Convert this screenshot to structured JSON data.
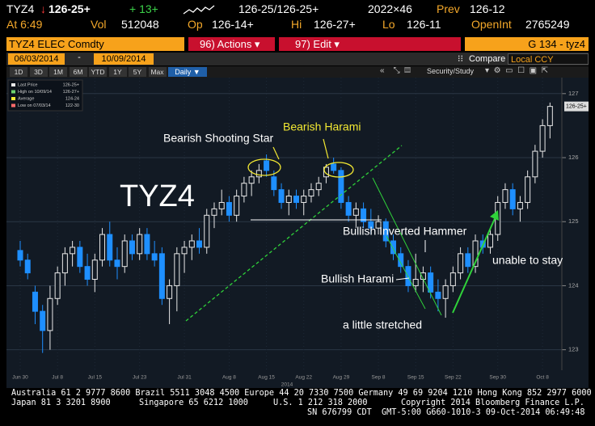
{
  "header": {
    "ticker": "TYZ4",
    "arrow": "↓",
    "last": "126-25+",
    "change": "+ 13+",
    "bid_ask": "126-25/126-25+",
    "size": "2022×46",
    "prev_label": "Prev",
    "prev": "126-12",
    "time": "At 6:49",
    "vol_label": "Vol",
    "vol": "512048",
    "op_label": "Op",
    "op": "126-14+",
    "hi_label": "Hi",
    "hi": "126-27+",
    "lo_label": "Lo",
    "lo": "126-11",
    "oi_label": "OpenInt",
    "oi": "2765249"
  },
  "toolbar": {
    "security": "TYZ4 ELEC Comdty",
    "actions": "96) Actions ▾",
    "edit": "97) Edit ▾",
    "page": "G 134 - tyz4",
    "start_date": "06/03/2014",
    "end_date": "10/09/2014",
    "compare": "Compare",
    "currency": "Local CCY",
    "ranges": [
      "1D",
      "3D",
      "1M",
      "6M",
      "YTD",
      "1Y",
      "5Y",
      "Max"
    ],
    "period": "Daily ▼",
    "study": "Security/Study"
  },
  "chart_data": {
    "type": "candlestick",
    "categories": [
      "Jun 30",
      null,
      null,
      null,
      null,
      "Jul 8",
      null,
      null,
      null,
      null,
      "Jul 15",
      null,
      null,
      null,
      null,
      null,
      "Jul 23",
      null,
      null,
      null,
      null,
      null,
      "Jul 31",
      null,
      null,
      null,
      null,
      null,
      "Aug 8",
      null,
      null,
      null,
      null,
      "Aug 15",
      null,
      null,
      null,
      null,
      "Aug 22",
      null,
      null,
      null,
      null,
      "Aug 29",
      null,
      null,
      null,
      null,
      "Sep 8",
      null,
      null,
      null,
      null,
      "Sep 15",
      null,
      null,
      null,
      null,
      "Sep 22",
      null,
      null,
      null,
      null,
      null,
      "Sep 30",
      null,
      null,
      null,
      null,
      null,
      "Oct 8",
      null
    ],
    "open": [
      124.55,
      124.4,
      123.9,
      123.6,
      123.3,
      123.8,
      124.2,
      124.5,
      124.6,
      124.3,
      124.1,
      124.4,
      124.8,
      124.4,
      124.3,
      124.7,
      124.5,
      124.8,
      124.5,
      124.5,
      123.8,
      124.0,
      124.5,
      124.6,
      124.7,
      124.6,
      125.1,
      125.2,
      125.3,
      125.1,
      125.4,
      125.6,
      125.7,
      125.95,
      125.7,
      125.5,
      125.3,
      125.4,
      125.3,
      125.4,
      125.5,
      125.7,
      125.9,
      125.8,
      125.3,
      125.1,
      125.2,
      125.0,
      124.9,
      125.0,
      124.7,
      124.5,
      124.3,
      124.0,
      124.1,
      124.2,
      123.9,
      123.8,
      124.0,
      124.2,
      124.5,
      124.3,
      124.7,
      124.6,
      124.8,
      125.3,
      125.5,
      125.2,
      125.3,
      125.7,
      126.1,
      126.5
    ],
    "high": [
      124.7,
      124.5,
      124.0,
      123.7,
      124.0,
      124.3,
      124.6,
      124.7,
      124.7,
      124.5,
      124.5,
      124.9,
      125.0,
      124.6,
      124.8,
      124.8,
      124.9,
      124.9,
      124.7,
      124.6,
      124.1,
      124.6,
      124.7,
      124.8,
      124.9,
      125.2,
      125.3,
      125.5,
      125.4,
      125.5,
      125.7,
      125.8,
      125.9,
      126.05,
      125.8,
      125.6,
      125.5,
      125.5,
      125.5,
      125.6,
      125.7,
      125.9,
      126.0,
      125.85,
      125.4,
      125.3,
      125.3,
      125.2,
      125.1,
      125.05,
      124.8,
      124.6,
      124.4,
      124.5,
      124.3,
      124.3,
      124.1,
      124.1,
      124.3,
      124.6,
      124.6,
      124.8,
      124.8,
      124.9,
      125.4,
      125.6,
      125.6,
      125.4,
      125.8,
      126.2,
      126.6,
      126.86
    ],
    "low": [
      124.3,
      124.1,
      123.4,
      122.95,
      123.0,
      123.7,
      124.0,
      124.3,
      124.2,
      124.0,
      123.9,
      124.3,
      124.3,
      124.1,
      124.2,
      124.4,
      124.4,
      124.4,
      124.3,
      123.7,
      123.4,
      123.6,
      124.2,
      124.4,
      124.5,
      124.5,
      124.9,
      125.1,
      125.0,
      125.0,
      125.3,
      125.4,
      125.6,
      125.7,
      125.4,
      125.2,
      125.1,
      125.2,
      125.1,
      125.3,
      125.4,
      125.6,
      125.75,
      125.2,
      125.0,
      124.9,
      124.9,
      124.8,
      124.8,
      124.6,
      124.4,
      124.2,
      123.9,
      123.9,
      123.9,
      123.8,
      123.6,
      123.5,
      123.9,
      124.1,
      124.2,
      124.2,
      124.5,
      124.5,
      124.7,
      125.2,
      125.1,
      125.0,
      125.2,
      125.6,
      126.0,
      126.3
    ],
    "close": [
      124.4,
      124.2,
      123.6,
      123.3,
      123.8,
      124.2,
      124.5,
      124.6,
      124.3,
      124.1,
      124.4,
      124.8,
      124.4,
      124.3,
      124.7,
      124.5,
      124.8,
      124.5,
      124.4,
      123.8,
      124.0,
      124.5,
      124.6,
      124.7,
      124.6,
      125.1,
      125.2,
      125.3,
      125.1,
      125.4,
      125.6,
      125.7,
      125.8,
      125.8,
      125.5,
      125.3,
      125.4,
      125.3,
      125.4,
      125.5,
      125.6,
      125.85,
      125.8,
      125.3,
      125.1,
      125.2,
      125.0,
      124.9,
      125.0,
      124.7,
      124.5,
      124.3,
      124.0,
      124.1,
      124.2,
      123.9,
      123.8,
      124.0,
      124.2,
      124.5,
      124.3,
      124.7,
      124.6,
      124.8,
      125.3,
      125.5,
      125.2,
      125.3,
      125.7,
      126.1,
      126.5,
      126.8
    ],
    "up_color": "#e8e8e8",
    "down_color": "#1e8fff",
    "ylim": [
      122.68,
      127.25
    ],
    "yticks": [
      123,
      124,
      125,
      126,
      127
    ],
    "year": "2014",
    "last_label": "126-25+",
    "stats": [
      {
        "label": "Last Price",
        "value": "126-25+"
      },
      {
        "label": "High on 10/09/14",
        "value": "126-27+"
      },
      {
        "label": "Average",
        "value": "124-24"
      },
      {
        "label": "Low on 07/03/14",
        "value": "122-30"
      }
    ],
    "annotations": [
      "TYZ4",
      "Bearish Shooting Star",
      "Bearish Harami",
      "Bullish Inverted Hammer",
      "Bullish Harami",
      "unable to stay",
      "a little stretched"
    ]
  },
  "footer": {
    "line1": "Australia 61 2 9777 8600 Brazil 5511 3048 4500 Europe 44 20 7330 7500 Germany 49 69 9204 1210 Hong Kong 852 2977 6000",
    "japan": "Japan 81 3 3201 8900",
    "singapore": "Singapore 65 6212 1000",
    "us": "U.S. 1 212 318 2000",
    "copyright": "Copyright 2014 Bloomberg Finance L.P.",
    "line3": "SN 676799 CDT  GMT-5:00 G660-1010-3 09-Oct-2014 06:49:48"
  }
}
